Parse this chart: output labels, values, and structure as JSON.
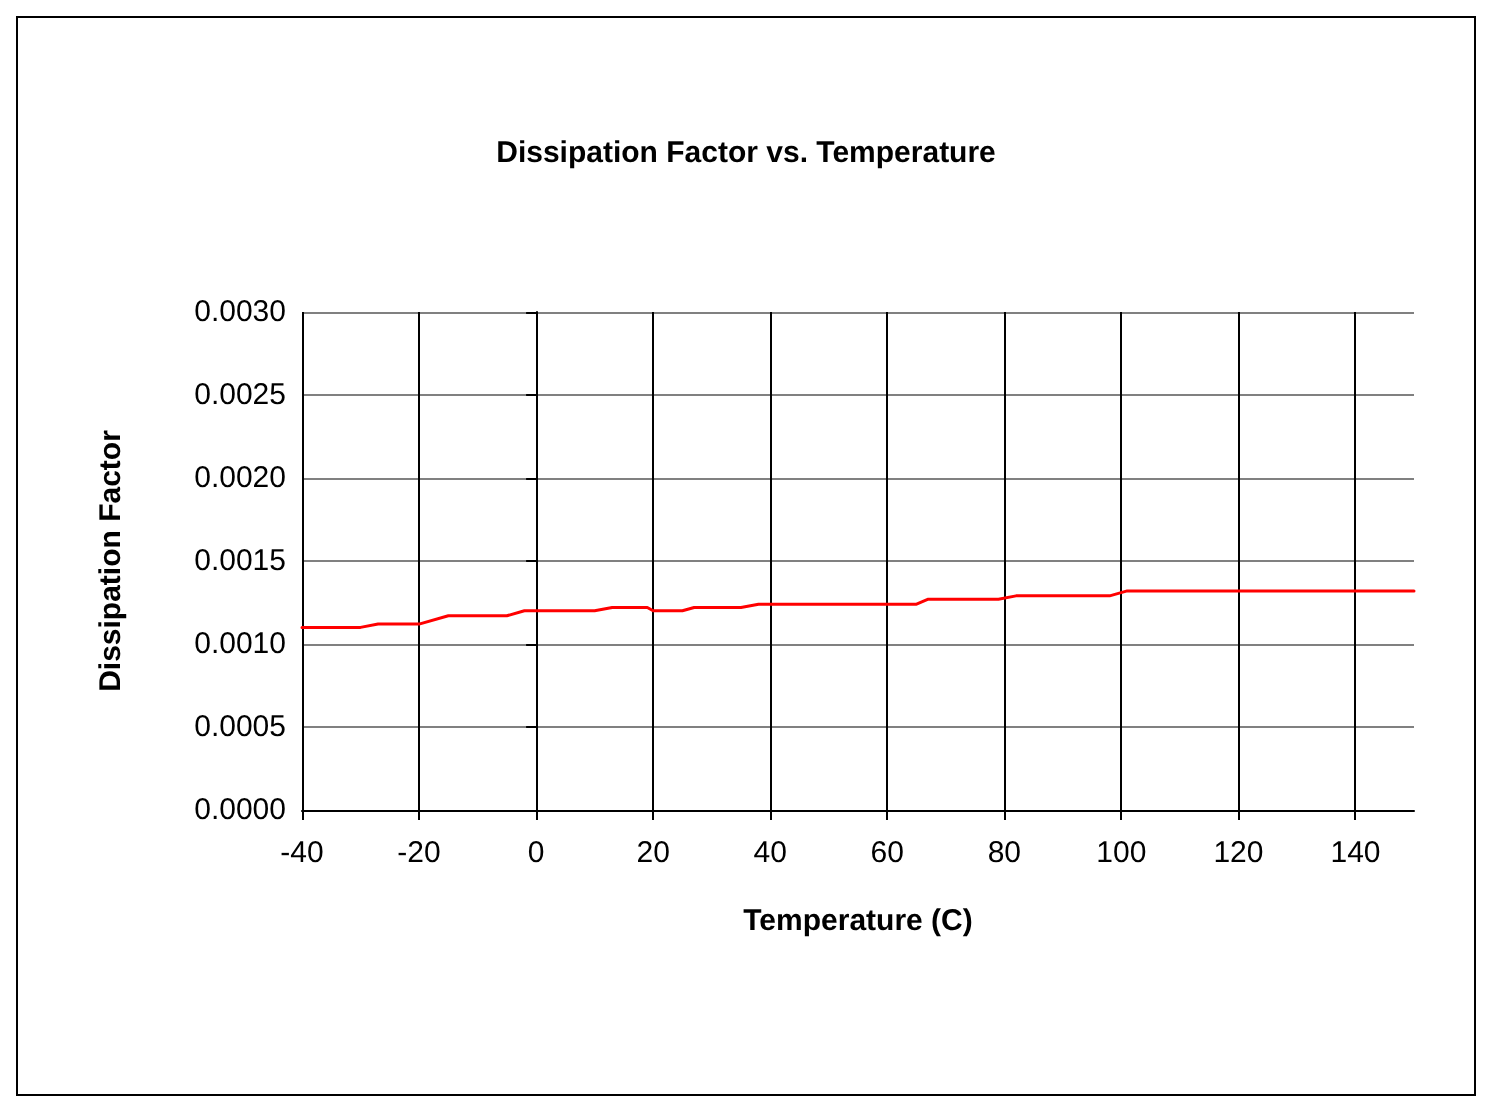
{
  "chart_data": {
    "type": "line",
    "title": "Dissipation Factor vs. Temperature",
    "xlabel": "Temperature (C)",
    "ylabel": "Dissipation Factor",
    "series": [
      {
        "color": "#ff0000",
        "x": [
          -40,
          -30,
          -27,
          -20,
          -15,
          -5,
          -2,
          10,
          13,
          19,
          20,
          25,
          27,
          35,
          38,
          55,
          65,
          67,
          79,
          82,
          98,
          101,
          150
        ],
        "values": [
          0.0011,
          0.0011,
          0.00112,
          0.00112,
          0.00117,
          0.00117,
          0.0012,
          0.0012,
          0.00122,
          0.00122,
          0.0012,
          0.0012,
          0.00122,
          0.00122,
          0.00124,
          0.00124,
          0.00124,
          0.00127,
          0.00127,
          0.00129,
          0.00129,
          0.00132,
          0.00132
        ]
      }
    ],
    "xlim": [
      -40,
      150
    ],
    "xticks": [
      -40,
      -20,
      0,
      20,
      40,
      60,
      80,
      100,
      120,
      140
    ],
    "ylim": [
      0,
      0.003
    ],
    "yticks": [
      {
        "value": 0,
        "label": "0.0000"
      },
      {
        "value": 0.0005,
        "label": "0.0005"
      },
      {
        "value": 0.001,
        "label": "0.0010"
      },
      {
        "value": 0.0015,
        "label": "0.0015"
      },
      {
        "value": 0.002,
        "label": "0.0020"
      },
      {
        "value": 0.0025,
        "label": "0.0025"
      },
      {
        "value": 0.003,
        "label": "0.0030"
      }
    ],
    "grid": true,
    "marker": "none",
    "line_style": "solid"
  }
}
